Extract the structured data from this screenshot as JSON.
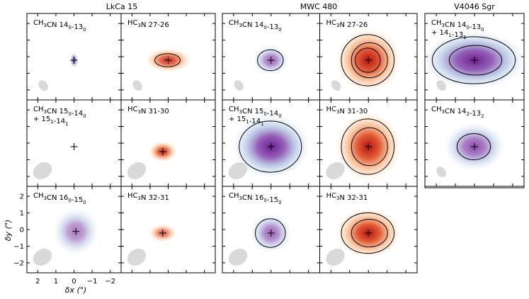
{
  "chart_data": {
    "type": "heatmap",
    "description_units": "arcsec offsets",
    "groups": [
      {
        "id": "lkca15",
        "title": "LkCa 15"
      },
      {
        "id": "mwc480",
        "title": "MWC 480"
      },
      {
        "id": "v4046",
        "title": "V4046 Sgr"
      }
    ],
    "xlabel": "δx (\")",
    "ylabel": "δy (\")",
    "xlim": [
      2.6,
      -2.6
    ],
    "ylim": [
      -2.6,
      2.6
    ],
    "xticks": [
      2,
      1,
      0,
      -1,
      -2
    ],
    "xtick_labels": [
      "2",
      "1",
      "0",
      "−1",
      "−2"
    ],
    "yticks": [
      2,
      1,
      0,
      -1,
      -2
    ],
    "ytick_labels": [
      "2",
      "1",
      "0",
      "−1",
      "−2"
    ],
    "colormaps": {
      "CH3CN": "#6a2c91",
      "HC3N": "#c81d1d"
    },
    "panels": [
      {
        "group": "lkca15",
        "row": 0,
        "col": 0,
        "species": "CH3CN",
        "label": {
          "mol": "CH",
          "sub1": "3",
          "mid": "CN 14",
          "sub2": "0",
          "dash": "-13",
          "sub3": "0"
        },
        "emission": {
          "x": 0.0,
          "y": 0.0,
          "rx": 0.15,
          "ry": 0.3,
          "peak": 0.8
        },
        "contours": []
      },
      {
        "group": "lkca15",
        "row": 0,
        "col": 1,
        "species": "HC3N",
        "label": {
          "mol": "HC",
          "sub1": "3",
          "mid": "N 27-26"
        },
        "emission": {
          "x": 0.0,
          "y": 0.0,
          "rx": 0.8,
          "ry": 0.45,
          "peak": 0.9
        },
        "contours": [
          0.6
        ]
      },
      {
        "group": "lkca15",
        "row": 1,
        "col": 0,
        "species": "CH3CN",
        "label": {
          "mol": "CH",
          "sub1": "3",
          "mid": "CN 15",
          "sub2": "0",
          "dash": "-14",
          "sub3": "0",
          "line2": "+ 15",
          "sub4": "1",
          "dash2": "-14",
          "sub5": "1"
        },
        "emission": {
          "x": 0.0,
          "y": 0.0,
          "rx": 0.1,
          "ry": 0.1,
          "peak": 0.1
        },
        "contours": []
      },
      {
        "group": "lkca15",
        "row": 1,
        "col": 1,
        "species": "HC3N",
        "label": {
          "mol": "HC",
          "sub1": "3",
          "mid": "N 31-30"
        },
        "emission": {
          "x": 0.3,
          "y": -0.3,
          "rx": 0.5,
          "ry": 0.4,
          "peak": 0.9
        },
        "contours": []
      },
      {
        "group": "lkca15",
        "row": 2,
        "col": 0,
        "species": "CH3CN",
        "label": {
          "mol": "CH",
          "sub1": "3",
          "mid": "CN 16",
          "sub2": "0",
          "dash": "-15",
          "sub3": "0"
        },
        "emission": {
          "x": -0.1,
          "y": 0.1,
          "rx": 0.8,
          "ry": 0.9,
          "peak": 0.6
        },
        "contours": []
      },
      {
        "group": "lkca15",
        "row": 2,
        "col": 1,
        "species": "HC3N",
        "label": {
          "mol": "HC",
          "sub1": "3",
          "mid": "N 32-31"
        },
        "emission": {
          "x": 0.3,
          "y": 0.0,
          "rx": 0.5,
          "ry": 0.35,
          "peak": 0.7
        },
        "contours": []
      },
      {
        "group": "mwc480",
        "row": 0,
        "col": 0,
        "species": "CH3CN",
        "label": {
          "mol": "CH",
          "sub1": "3",
          "mid": "CN 14",
          "sub2": "0",
          "dash": "-13",
          "sub3": "0"
        },
        "emission": {
          "x": 0.0,
          "y": 0.0,
          "rx": 0.6,
          "ry": 0.55,
          "peak": 0.7
        },
        "contours": [
          0.4
        ]
      },
      {
        "group": "mwc480",
        "row": 0,
        "col": 1,
        "species": "HC3N",
        "label": {
          "mol": "HC",
          "sub1": "3",
          "mid": "N 27-26"
        },
        "emission": {
          "x": 0.0,
          "y": 0.0,
          "rx": 1.1,
          "ry": 1.2,
          "peak": 1.0
        },
        "contours": [
          0.3,
          0.6,
          0.8
        ]
      },
      {
        "group": "mwc480",
        "row": 1,
        "col": 0,
        "species": "CH3CN",
        "label": {
          "mol": "CH",
          "sub1": "3",
          "mid": "CN 15",
          "sub2": "0",
          "dash": "-14",
          "sub3": "0",
          "line2": "+ 15",
          "sub4": "1",
          "dash2": "-14",
          "sub5": "1"
        },
        "emission": {
          "x": 0.0,
          "y": 0.0,
          "rx": 1.3,
          "ry": 1.2,
          "peak": 1.0
        },
        "contours": [
          0.3
        ]
      },
      {
        "group": "mwc480",
        "row": 1,
        "col": 1,
        "species": "HC3N",
        "label": {
          "mol": "HC",
          "sub1": "3",
          "mid": "N 31-30"
        },
        "emission": {
          "x": 0.0,
          "y": 0.0,
          "rx": 1.1,
          "ry": 1.3,
          "peak": 1.0
        },
        "contours": [
          0.3,
          0.6
        ]
      },
      {
        "group": "mwc480",
        "row": 2,
        "col": 0,
        "species": "CH3CN",
        "label": {
          "mol": "CH",
          "sub1": "3",
          "mid": "CN 16",
          "sub2": "0",
          "dash": "-15",
          "sub3": "0"
        },
        "emission": {
          "x": 0.0,
          "y": 0.0,
          "rx": 0.7,
          "ry": 0.75,
          "peak": 0.7
        },
        "contours": [
          0.4
        ]
      },
      {
        "group": "mwc480",
        "row": 2,
        "col": 1,
        "species": "HC3N",
        "label": {
          "mol": "HC",
          "sub1": "3",
          "mid": "N 32-31"
        },
        "emission": {
          "x": 0.0,
          "y": 0.0,
          "rx": 1.1,
          "ry": 0.95,
          "peak": 1.0
        },
        "contours": [
          0.3,
          0.6
        ]
      },
      {
        "group": "v4046",
        "row": 0,
        "col": 0,
        "species": "CH3CN",
        "label": {
          "mol": "CH",
          "sub1": "3",
          "mid": "CN 14",
          "sub2": "0",
          "dash": "-13",
          "sub3": "0",
          "line2": "+ 14",
          "sub4": "1",
          "dash2": "-13",
          "sub5": "1"
        },
        "emission": {
          "x": 0.0,
          "y": 0.0,
          "rx": 1.7,
          "ry": 1.1,
          "peak": 1.0
        },
        "contours": [
          0.3,
          0.65
        ]
      },
      {
        "group": "v4046",
        "row": 1,
        "col": 0,
        "species": "CH3CN",
        "label": {
          "mol": "CH",
          "sub1": "3",
          "mid": "CN 14",
          "sub2": "2",
          "dash": "-13",
          "sub3": "2"
        },
        "emission": {
          "x": 0.0,
          "y": 0.0,
          "rx": 1.0,
          "ry": 0.9,
          "peak": 0.8
        },
        "contours": [
          0.6
        ]
      }
    ]
  }
}
